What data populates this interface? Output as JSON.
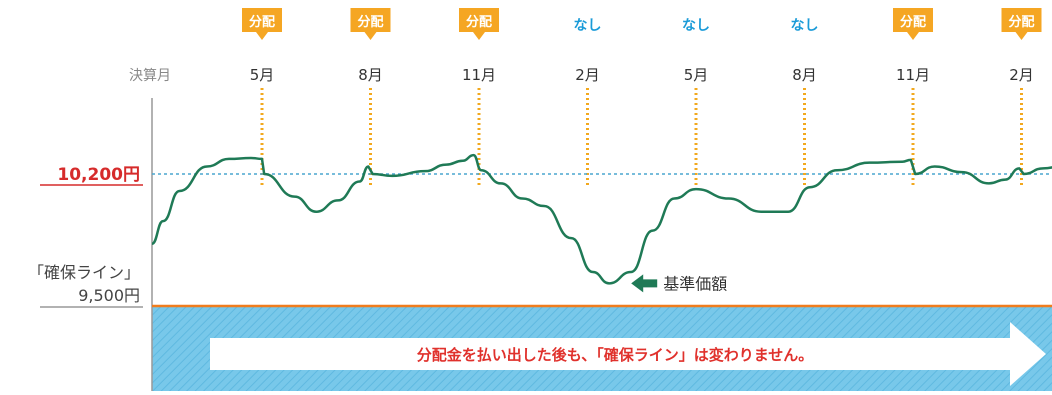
{
  "chart_data": {
    "type": "line",
    "title": "",
    "x_label": "決算月",
    "months": [
      "5月",
      "8月",
      "11月",
      "2月",
      "5月",
      "8月",
      "11月",
      "2月"
    ],
    "distribution": [
      {
        "label": "分配",
        "kind": "paid"
      },
      {
        "label": "分配",
        "kind": "paid"
      },
      {
        "label": "分配",
        "kind": "paid"
      },
      {
        "label": "なし",
        "kind": "none"
      },
      {
        "label": "なし",
        "kind": "none"
      },
      {
        "label": "なし",
        "kind": "none"
      },
      {
        "label": "分配",
        "kind": "paid"
      },
      {
        "label": "分配",
        "kind": "paid"
      }
    ],
    "reference_line": {
      "label": "10,200円",
      "value": 10200
    },
    "floor_line": {
      "label_line1": "「確保ライン」",
      "label_line2": "9,500円",
      "value": 9500
    },
    "series": [
      {
        "name": "基準価額",
        "points": [
          [
            0.0,
            9830
          ],
          [
            0.1,
            9950
          ],
          [
            0.25,
            10110
          ],
          [
            0.5,
            10240
          ],
          [
            0.7,
            10280
          ],
          [
            0.9,
            10285
          ],
          [
            1.0,
            10280
          ],
          [
            1.02,
            10200
          ],
          [
            1.3,
            10080
          ],
          [
            1.5,
            10000
          ],
          [
            1.7,
            10060
          ],
          [
            1.9,
            10160
          ],
          [
            1.98,
            10240
          ],
          [
            2.02,
            10200
          ],
          [
            2.2,
            10190
          ],
          [
            2.5,
            10215
          ],
          [
            2.7,
            10250
          ],
          [
            2.85,
            10270
          ],
          [
            2.95,
            10300
          ],
          [
            3.02,
            10220
          ],
          [
            3.2,
            10150
          ],
          [
            3.4,
            10070
          ],
          [
            3.6,
            10030
          ],
          [
            3.85,
            9860
          ],
          [
            4.05,
            9680
          ],
          [
            4.2,
            9620
          ],
          [
            4.4,
            9680
          ],
          [
            4.6,
            9900
          ],
          [
            4.8,
            10070
          ],
          [
            5.0,
            10120
          ],
          [
            5.3,
            10070
          ],
          [
            5.6,
            10000
          ],
          [
            5.85,
            10000
          ],
          [
            6.05,
            10130
          ],
          [
            6.3,
            10220
          ],
          [
            6.6,
            10260
          ],
          [
            6.9,
            10265
          ],
          [
            6.98,
            10275
          ],
          [
            7.02,
            10200
          ],
          [
            7.2,
            10240
          ],
          [
            7.45,
            10210
          ],
          [
            7.7,
            10150
          ],
          [
            7.85,
            10170
          ],
          [
            7.98,
            10230
          ],
          [
            8.02,
            10200
          ],
          [
            8.2,
            10230
          ],
          [
            8.4,
            10245
          ],
          [
            8.5,
            10235
          ]
        ]
      }
    ],
    "y_range": [
      9500,
      10600
    ],
    "series_label": "基準価額",
    "banner_text": "分配金を払い出した後も、「確保ライン」は変わりません。",
    "colors": {
      "paid_badge": "#f5a623",
      "none_text": "#1a9bd8",
      "vertical_dotted": "#f2a81d",
      "line": "#1f7a56",
      "reference_dashed": "#4aa6cf",
      "reference_label": "#d62b2b",
      "floor_line": "#f07d1e",
      "banner_bg": "#6cc2e6",
      "banner_text": "#e0312c"
    }
  }
}
